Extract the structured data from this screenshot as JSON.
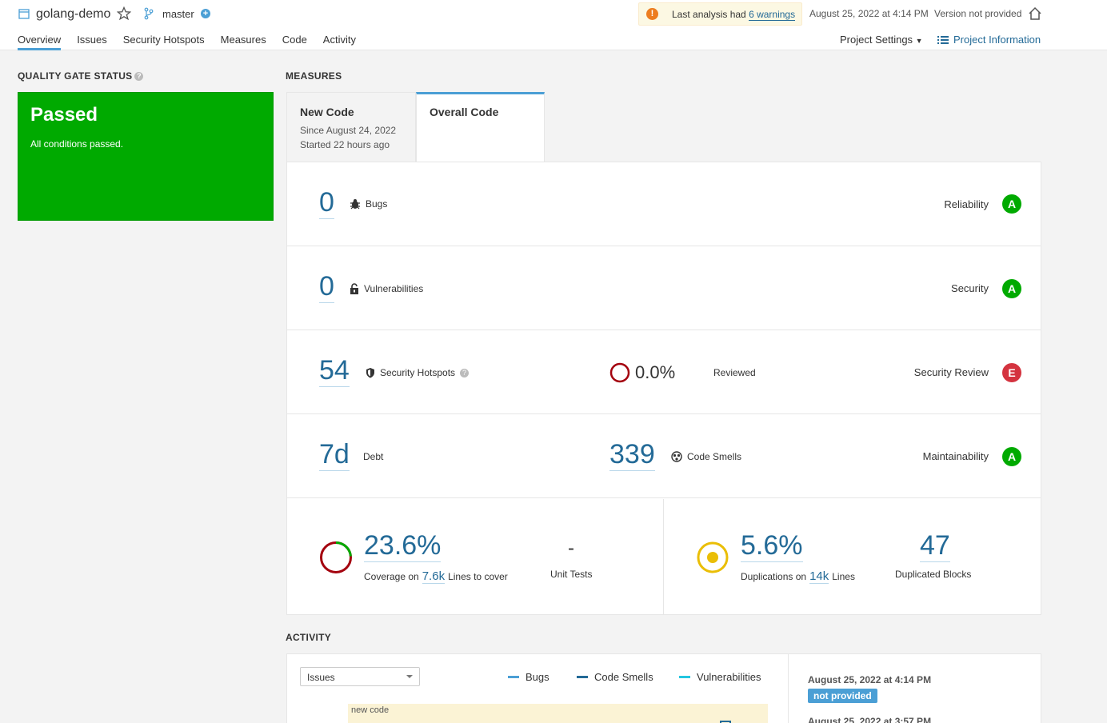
{
  "header": {
    "project_name": "golang-demo",
    "branch": "master",
    "warning_prefix": "Last analysis had",
    "warning_link": "6 warnings",
    "analysis_date": "August 25, 2022 at 4:14 PM",
    "version": "Version not provided",
    "project_settings": "Project Settings",
    "project_information": "Project Information"
  },
  "nav": {
    "items": [
      "Overview",
      "Issues",
      "Security Hotspots",
      "Measures",
      "Code",
      "Activity"
    ],
    "active": "Overview"
  },
  "quality_gate": {
    "title": "QUALITY GATE STATUS",
    "status": "Passed",
    "conditions": "All conditions passed.",
    "status_color": "#00aa00"
  },
  "measures": {
    "title": "MEASURES",
    "tabs": {
      "new_code": {
        "label": "New Code",
        "since": "Since August 24, 2022",
        "started": "Started 22 hours ago"
      },
      "overall_code": {
        "label": "Overall Code"
      }
    },
    "bugs": {
      "value": "0",
      "label": "Bugs",
      "category": "Reliability",
      "rating": "A"
    },
    "vulnerabilities": {
      "value": "0",
      "label": "Vulnerabilities",
      "category": "Security",
      "rating": "A"
    },
    "hotspots": {
      "value": "54",
      "label": "Security Hotspots",
      "reviewed_value": "0.0%",
      "reviewed_label": "Reviewed",
      "category": "Security Review",
      "rating": "E"
    },
    "maintainability": {
      "debt_value": "7d",
      "debt_label": "Debt",
      "smells_value": "339",
      "smells_label": "Code Smells",
      "category": "Maintainability",
      "rating": "A"
    },
    "coverage": {
      "value": "23.6%",
      "percent": 23.6,
      "prefix": "Coverage on",
      "lines_value": "7.6k",
      "lines_suffix": "Lines to cover",
      "unit_tests_value": "-",
      "unit_tests_label": "Unit Tests"
    },
    "duplications": {
      "value": "5.6%",
      "prefix": "Duplications on",
      "lines_value": "14k",
      "lines_suffix": "Lines",
      "blocks_value": "47",
      "blocks_label": "Duplicated Blocks"
    }
  },
  "activity": {
    "title": "ACTIVITY",
    "select_value": "Issues",
    "legend": [
      {
        "label": "Bugs",
        "color": "#4b9fd5"
      },
      {
        "label": "Code Smells",
        "color": "#236a97"
      },
      {
        "label": "Vulnerabilities",
        "color": "#24c6e0"
      }
    ],
    "new_code_label": "new code",
    "history": [
      {
        "date": "August 25, 2022 at 4:14 PM",
        "badge": "not provided"
      },
      {
        "date": "August 25, 2022 at 3:57 PM"
      }
    ]
  }
}
